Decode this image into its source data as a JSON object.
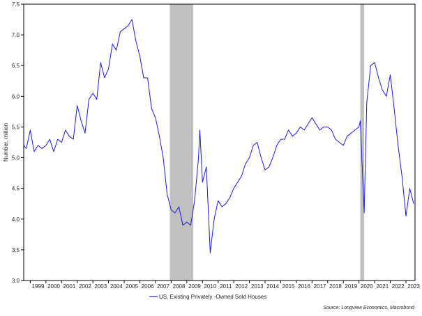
{
  "chart_data": {
    "type": "line",
    "title": "",
    "xlabel": "",
    "ylabel": "Number, million",
    "ylim": [
      3.0,
      7.5
    ],
    "xlim": [
      "1998-08-01",
      "2023-08-01"
    ],
    "yticks": [
      "3.0",
      "3.5",
      "4.0",
      "4.5",
      "5.0",
      "5.5",
      "6.0",
      "6.5",
      "7.0",
      "7.5"
    ],
    "xticks": [
      "1999",
      "2000",
      "2001",
      "2002",
      "2003",
      "2004",
      "2005",
      "2006",
      "2007",
      "2008",
      "2009",
      "2010",
      "2011",
      "2012",
      "2013",
      "2014",
      "2015",
      "2016",
      "2017",
      "2018",
      "2019",
      "2020",
      "2021",
      "2022",
      "2023"
    ],
    "grid": false,
    "legend_position": "bottom",
    "line_color": "#1a1adc",
    "recession_color": "#c0c0c0",
    "recessions": [
      {
        "start": "2007-12-01",
        "end": "2009-06-01"
      },
      {
        "start": "2020-02-01",
        "end": "2020-05-01"
      }
    ],
    "series": [
      {
        "name": "US, Existing Privately -Owned Sold Houses",
        "x": [
          "1998-08",
          "1998-10",
          "1999-01",
          "1999-04",
          "1999-07",
          "1999-10",
          "2000-01",
          "2000-04",
          "2000-07",
          "2000-10",
          "2001-01",
          "2001-04",
          "2001-07",
          "2001-10",
          "2002-01",
          "2002-04",
          "2002-07",
          "2002-10",
          "2003-01",
          "2003-04",
          "2003-07",
          "2003-10",
          "2004-01",
          "2004-04",
          "2004-07",
          "2004-10",
          "2005-01",
          "2005-04",
          "2005-07",
          "2005-10",
          "2006-01",
          "2006-04",
          "2006-07",
          "2006-10",
          "2007-01",
          "2007-04",
          "2007-07",
          "2007-10",
          "2008-01",
          "2008-04",
          "2008-07",
          "2008-10",
          "2009-01",
          "2009-04",
          "2009-07",
          "2009-10",
          "2009-11",
          "2010-01",
          "2010-04",
          "2010-07",
          "2010-10",
          "2011-01",
          "2011-04",
          "2011-07",
          "2011-10",
          "2012-01",
          "2012-04",
          "2012-07",
          "2012-10",
          "2013-01",
          "2013-04",
          "2013-07",
          "2013-10",
          "2014-01",
          "2014-04",
          "2014-07",
          "2014-10",
          "2015-01",
          "2015-04",
          "2015-07",
          "2015-10",
          "2016-01",
          "2016-04",
          "2016-07",
          "2016-10",
          "2017-01",
          "2017-04",
          "2017-07",
          "2017-10",
          "2018-01",
          "2018-04",
          "2018-07",
          "2018-10",
          "2019-01",
          "2019-04",
          "2019-07",
          "2019-10",
          "2020-01",
          "2020-02",
          "2020-05",
          "2020-07",
          "2020-10",
          "2021-01",
          "2021-04",
          "2021-07",
          "2021-10",
          "2022-01",
          "2022-04",
          "2022-07",
          "2022-10",
          "2023-01",
          "2023-04",
          "2023-07"
        ],
        "values": [
          5.2,
          5.15,
          5.45,
          5.1,
          5.2,
          5.15,
          5.2,
          5.3,
          5.1,
          5.3,
          5.25,
          5.45,
          5.35,
          5.3,
          5.85,
          5.6,
          5.4,
          5.95,
          6.05,
          5.95,
          6.55,
          6.3,
          6.45,
          6.85,
          6.75,
          7.05,
          7.1,
          7.15,
          7.25,
          6.9,
          6.65,
          6.3,
          6.3,
          5.8,
          5.65,
          5.35,
          5.0,
          4.4,
          4.15,
          4.1,
          4.2,
          3.9,
          3.95,
          3.9,
          4.3,
          5.0,
          5.45,
          4.6,
          4.85,
          3.45,
          4.0,
          4.3,
          4.2,
          4.25,
          4.35,
          4.5,
          4.6,
          4.7,
          4.9,
          5.0,
          5.2,
          5.25,
          5.0,
          4.8,
          4.85,
          5.0,
          5.2,
          5.3,
          5.3,
          5.45,
          5.35,
          5.4,
          5.5,
          5.45,
          5.55,
          5.65,
          5.55,
          5.45,
          5.5,
          5.5,
          5.45,
          5.3,
          5.25,
          5.2,
          5.35,
          5.4,
          5.45,
          5.5,
          5.6,
          4.1,
          5.9,
          6.5,
          6.55,
          6.3,
          6.1,
          6.0,
          6.35,
          5.8,
          5.2,
          4.7,
          4.05,
          4.5,
          4.25
        ]
      }
    ],
    "source": "Source: Longview Economics, Macrobond"
  }
}
